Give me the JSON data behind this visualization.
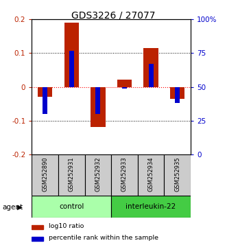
{
  "title": "GDS3226 / 27077",
  "samples": [
    "GSM252890",
    "GSM252931",
    "GSM252932",
    "GSM252933",
    "GSM252934",
    "GSM252935"
  ],
  "log10_ratio": [
    -0.03,
    0.19,
    -0.12,
    0.022,
    0.115,
    -0.035
  ],
  "percentile_rank": [
    30,
    77,
    30,
    49,
    67,
    38
  ],
  "groups": [
    {
      "label": "control",
      "start": 0,
      "end": 3,
      "color": "#aaffaa"
    },
    {
      "label": "interleukin-22",
      "start": 3,
      "end": 6,
      "color": "#44cc44"
    }
  ],
  "ylim_left": [
    -0.2,
    0.2
  ],
  "ylim_right": [
    0,
    100
  ],
  "yticks_left": [
    -0.2,
    -0.1,
    0.0,
    0.1,
    0.2
  ],
  "ytick_labels_left": [
    "-0.2",
    "-0.1",
    "0",
    "0.1",
    "0.2"
  ],
  "yticks_right": [
    0,
    25,
    50,
    75,
    100
  ],
  "ytick_labels_right": [
    "0",
    "25",
    "50",
    "75",
    "100%"
  ],
  "red_color": "#BB2200",
  "blue_color": "#0000CC",
  "zero_line_color": "red",
  "legend_red": "log10 ratio",
  "legend_blue": "percentile rank within the sample"
}
